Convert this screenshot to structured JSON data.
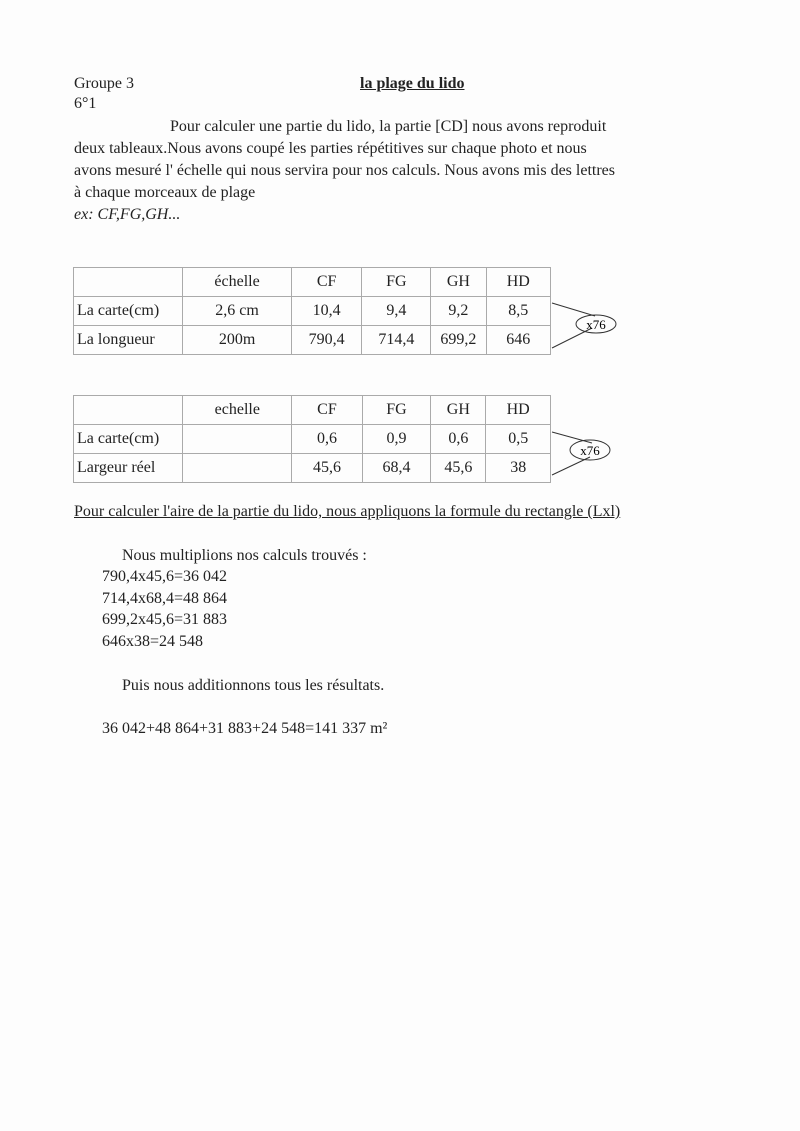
{
  "header": {
    "group": "Groupe 3",
    "class": "6°1",
    "title": "la plage du lido"
  },
  "intro": [
    "Pour calculer une partie du lido, la partie [CD] nous avons reproduit",
    "deux tableaux.Nous avons coupé les parties répétitives sur chaque photo et nous",
    "avons mesuré l' échelle qui nous servira pour nos calculs. Nous avons mis des lettres",
    "à chaque morceaux de plage"
  ],
  "example": "ex: CF,FG,GH...",
  "table1": {
    "headers": [
      "",
      "échelle",
      "CF",
      "FG",
      "GH",
      "HD"
    ],
    "rows": [
      [
        "La carte(cm)",
        "2,6 cm",
        "10,4",
        "9,4",
        "9,2",
        "8,5"
      ],
      [
        "La longueur",
        "200m",
        "790,4",
        "714,4",
        "699,2",
        "646"
      ]
    ],
    "multiplier": "x76"
  },
  "table2": {
    "headers": [
      "",
      "echelle",
      "CF",
      "FG",
      "GH",
      "HD"
    ],
    "rows": [
      [
        "La carte(cm)",
        "",
        "0,6",
        "0,9",
        "0,6",
        "0,5"
      ],
      [
        "Largeur réel",
        "",
        "45,6",
        "68,4",
        "45,6",
        "38"
      ]
    ],
    "multiplier": "x76"
  },
  "formula_heading": "Pour calculer l'aire de la partie du lido, nous appliquons la formule du rectangle (Lxl)",
  "multiply_intro": "Nous multiplions nos calculs trouvés :",
  "calculations": [
    "790,4x45,6=36 042",
    "714,4x68,4=48 864",
    "699,2x45,6=31 883",
    "646x38=24 548"
  ],
  "sum_intro": "Puis nous additionnons tous les résultats.",
  "sum": "36 042+48 864+31 883+24 548=141 337 m²"
}
